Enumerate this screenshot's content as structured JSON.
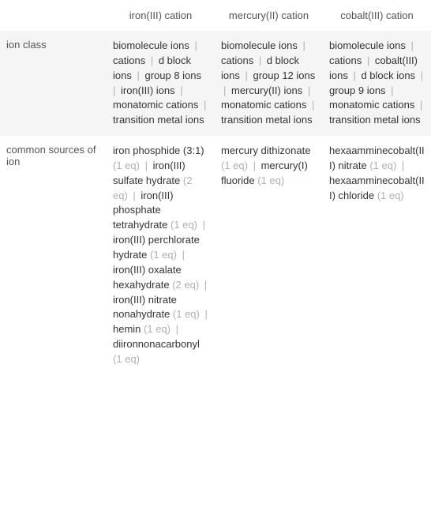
{
  "table": {
    "background_odd": "#f5f5f5",
    "background_even": "#ffffff",
    "separator_color": "#b0b0b0",
    "eq_color": "#b0b0b0",
    "text_color": "#333333",
    "muted_color": "#555555",
    "font_size": 13,
    "columns": [
      {
        "key": "label",
        "header": ""
      },
      {
        "key": "iron",
        "header": "iron(III) cation"
      },
      {
        "key": "mercury",
        "header": "mercury(II) cation"
      },
      {
        "key": "cobalt",
        "header": "cobalt(III) cation"
      }
    ],
    "rows": [
      {
        "label": "ion class",
        "iron": {
          "items": [
            {
              "text": "biomolecule ions"
            },
            {
              "text": "cations"
            },
            {
              "text": "d block ions"
            },
            {
              "text": "group 8 ions"
            },
            {
              "text": "iron(III) ions"
            },
            {
              "text": "monatomic cations"
            },
            {
              "text": "transition metal ions"
            }
          ]
        },
        "mercury": {
          "items": [
            {
              "text": "biomolecule ions"
            },
            {
              "text": "cations"
            },
            {
              "text": "d block ions"
            },
            {
              "text": "group 12 ions"
            },
            {
              "text": "mercury(II) ions"
            },
            {
              "text": "monatomic cations"
            },
            {
              "text": "transition metal ions"
            }
          ]
        },
        "cobalt": {
          "items": [
            {
              "text": "biomolecule ions"
            },
            {
              "text": "cations"
            },
            {
              "text": "cobalt(III) ions"
            },
            {
              "text": "d block ions"
            },
            {
              "text": "group 9 ions"
            },
            {
              "text": "monatomic cations"
            },
            {
              "text": "transition metal ions"
            }
          ]
        }
      },
      {
        "label": "common sources of ion",
        "iron": {
          "items": [
            {
              "text": "iron phosphide (3:1)",
              "eq": "(1 eq)"
            },
            {
              "text": "iron(III) sulfate hydrate",
              "eq": "(2 eq)"
            },
            {
              "text": "iron(III) phosphate tetrahydrate",
              "eq": "(1 eq)"
            },
            {
              "text": "iron(III) perchlorate hydrate",
              "eq": "(1 eq)"
            },
            {
              "text": "iron(III) oxalate hexahydrate",
              "eq": "(2 eq)"
            },
            {
              "text": "iron(III) nitrate nonahydrate",
              "eq": "(1 eq)"
            },
            {
              "text": "hemin",
              "eq": "(1 eq)"
            },
            {
              "text": "diironnonacarbonyl",
              "eq": "(1 eq)"
            }
          ]
        },
        "mercury": {
          "items": [
            {
              "text": "mercury dithizonate",
              "eq": "(1 eq)"
            },
            {
              "text": "mercury(I) fluoride",
              "eq": "(1 eq)"
            }
          ]
        },
        "cobalt": {
          "items": [
            {
              "text": "hexaamminecobalt(III) nitrate",
              "eq": "(1 eq)"
            },
            {
              "text": "hexaamminecobalt(III) chloride",
              "eq": "(1 eq)"
            }
          ]
        }
      }
    ]
  }
}
